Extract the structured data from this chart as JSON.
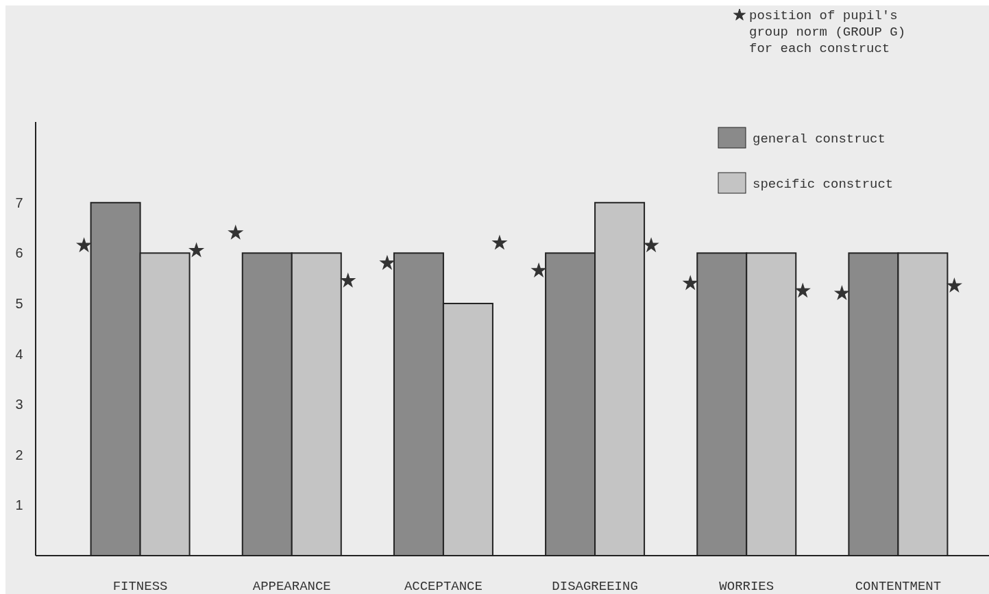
{
  "chart_data": {
    "type": "bar",
    "categories": [
      "FITNESS",
      "APPEARANCE",
      "ACCEPTANCE",
      "DISAGREEING",
      "WORRIES",
      "CONTENTMENT"
    ],
    "series": [
      {
        "name": "general construct",
        "color": "#8a8a8a",
        "values": [
          7,
          6,
          6,
          6,
          6,
          6
        ]
      },
      {
        "name": "specific construct",
        "color": "#c4c4c4",
        "values": [
          6,
          6,
          5,
          7,
          6,
          6
        ]
      },
      {
        "type": "scatter",
        "name": "position of pupil's group norm (GROUP G) for each construct",
        "color": "#333333",
        "x": [
          "FITNESS",
          "APPEARANCE",
          "ACCEPTANCE",
          "DISAGREEING",
          "WORRIES",
          "CONTENTMENT"
        ],
        "values": [
          6.15,
          6.4,
          5.8,
          5.65,
          5.4,
          5.2
        ]
      },
      {
        "type": "scatter",
        "color": "#333333",
        "x": [
          "FITNESS",
          "APPEARANCE",
          "ACCEPTANCE",
          "DISAGREEING",
          "WORRIES",
          "CONTENTMENT"
        ],
        "values": [
          6.05,
          5.45,
          6.2,
          6.15,
          5.25,
          5.35
        ]
      }
    ],
    "ylim": [
      0,
      8.6
    ],
    "yticks": [
      1,
      2,
      3,
      4,
      5,
      6,
      7
    ],
    "marker": "star",
    "legend": "top right",
    "grid": false
  }
}
